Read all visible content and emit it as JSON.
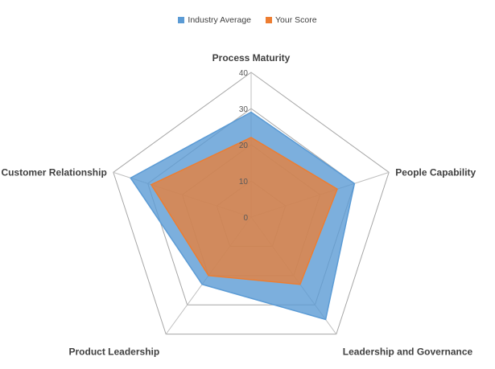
{
  "chart_data": {
    "type": "radar",
    "categories": [
      "Process Maturity",
      "People Capability",
      "Leadership and Governance",
      "Product Leadership",
      "Customer Relationship"
    ],
    "series": [
      {
        "name": "Industry Average",
        "values": [
          29,
          30,
          35,
          23,
          35
        ],
        "color": "#5B9BD5",
        "fill_opacity": 0.8
      },
      {
        "name": "Your Score",
        "values": [
          22,
          25,
          23,
          20,
          29
        ],
        "color": "#ED7D31",
        "fill_opacity": 0.75
      }
    ],
    "radial_ticks": [
      "0",
      "10",
      "20",
      "30",
      "40"
    ],
    "rlim": [
      0,
      40
    ],
    "legend_position": "top"
  }
}
